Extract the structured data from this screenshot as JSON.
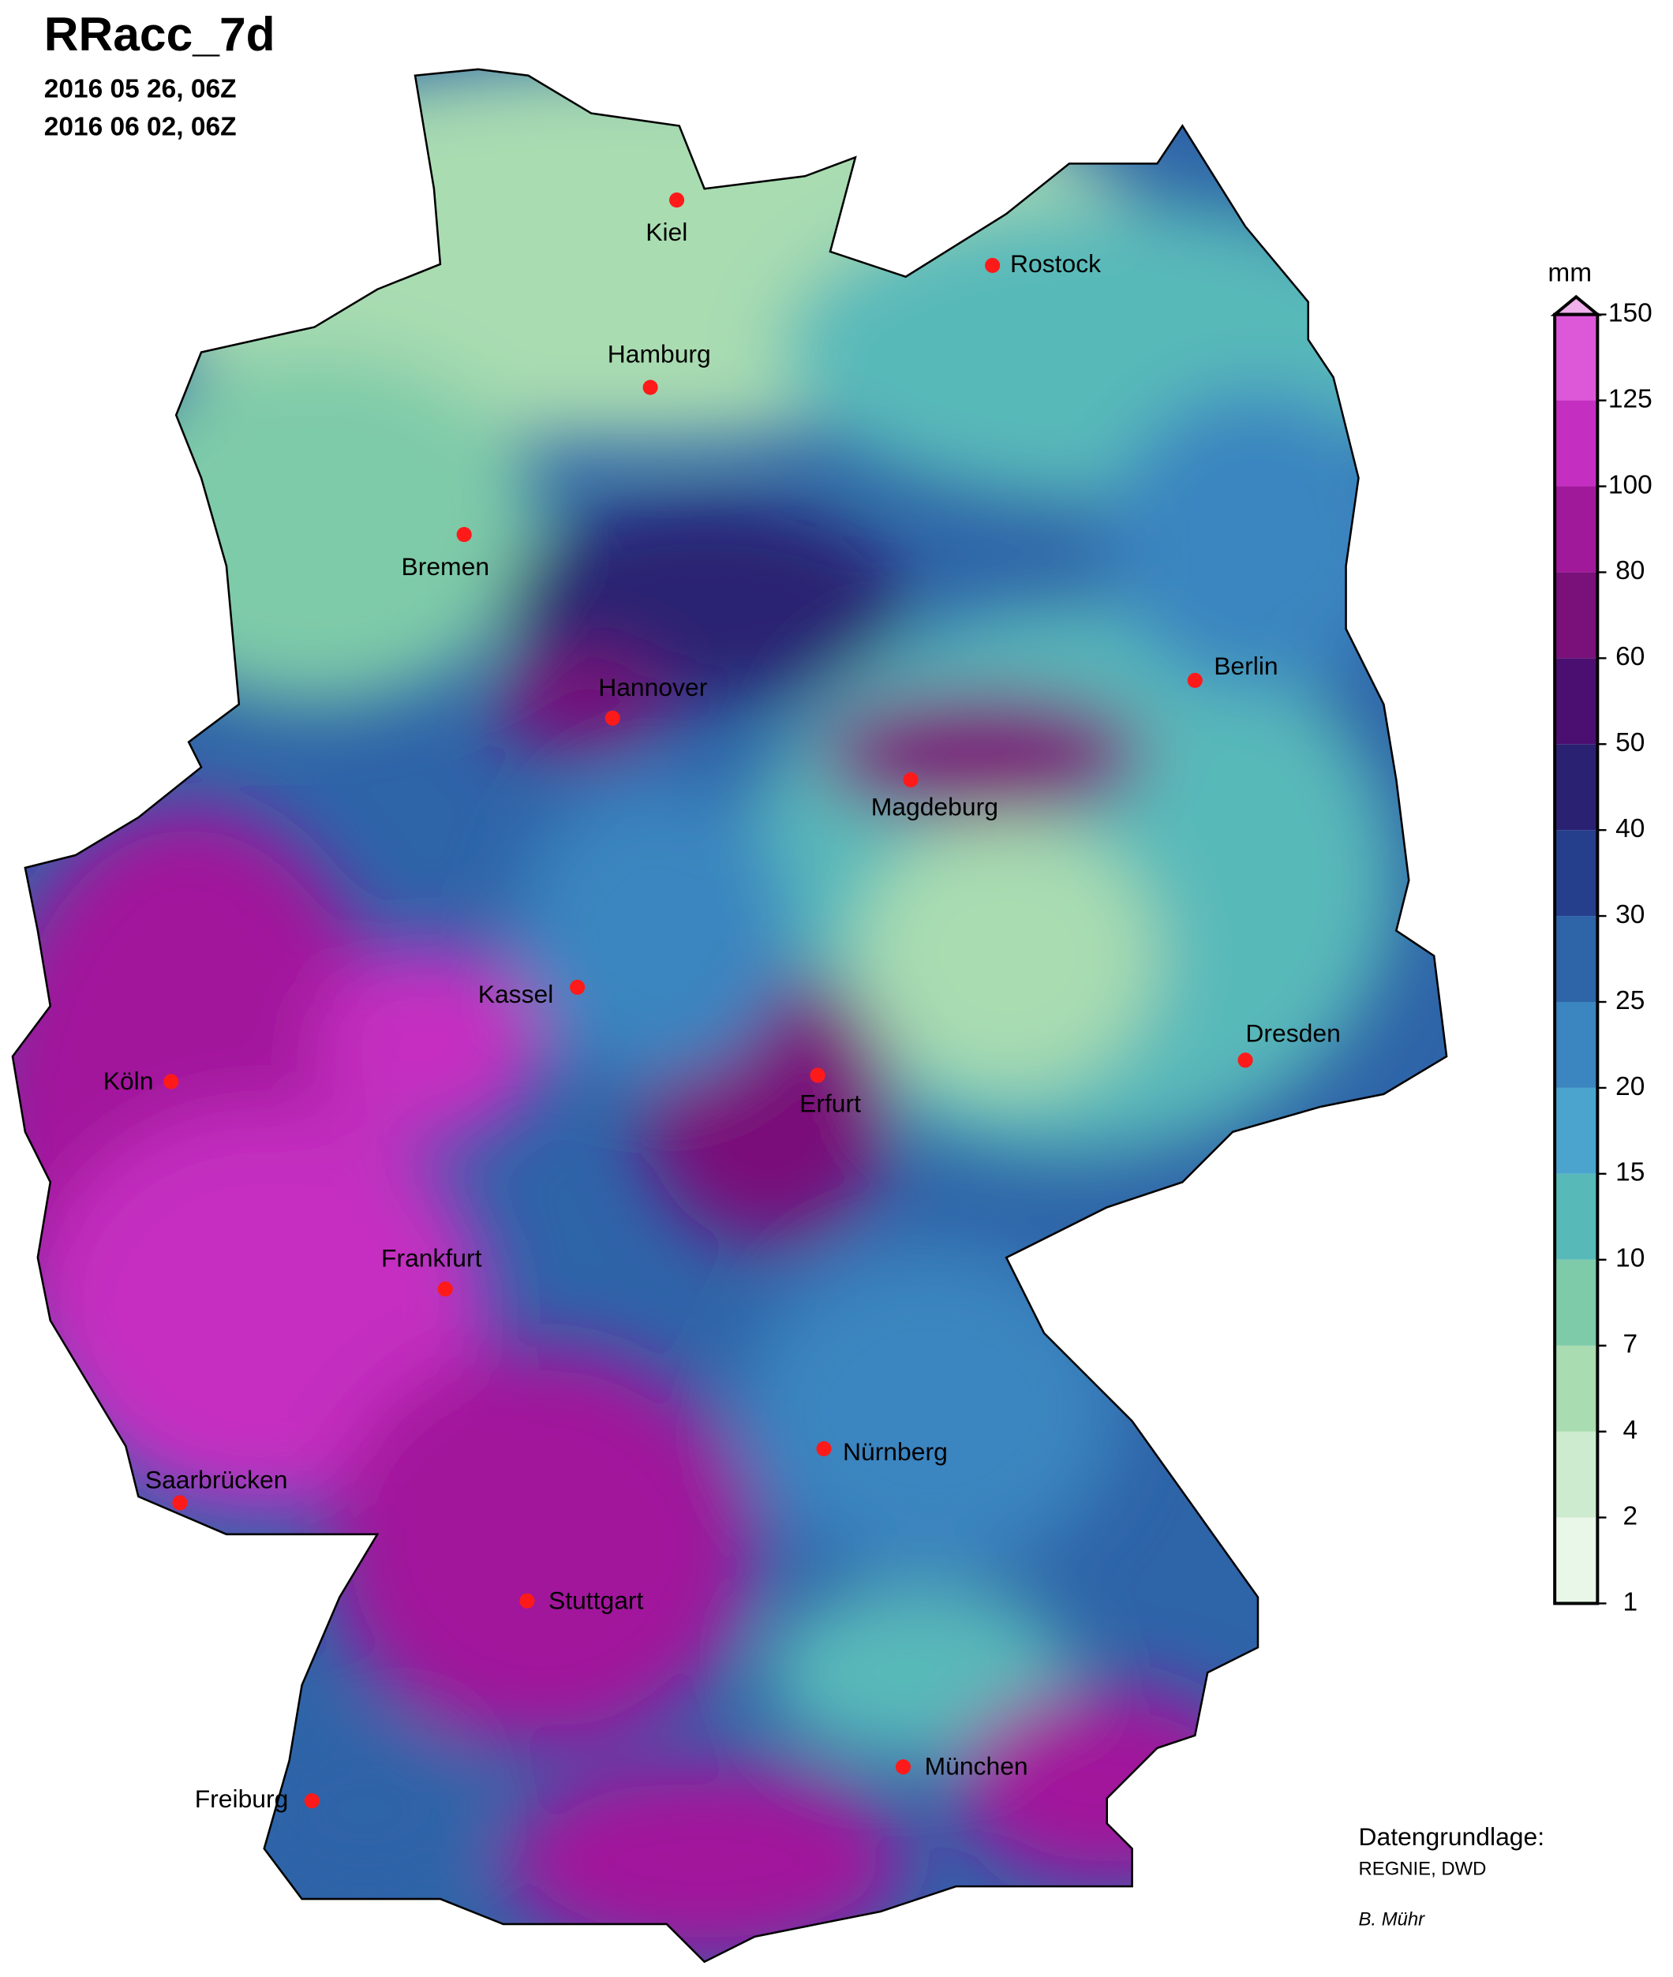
{
  "header": {
    "title": "RRacc_7d",
    "start": "2016 05 26, 06Z",
    "end": "2016 06 02, 06Z"
  },
  "cities": [
    "Kiel",
    "Rostock",
    "Hamburg",
    "Bremen",
    "Hannover",
    "Berlin",
    "Magdeburg",
    "Kassel",
    "Köln",
    "Erfurt",
    "Dresden",
    "Frankfurt",
    "Nürnberg",
    "Saarbrücken",
    "Stuttgart",
    "Freiburg",
    "München"
  ],
  "legend": {
    "unit": "mm",
    "ticks": [
      1,
      2,
      4,
      7,
      10,
      15,
      20,
      25,
      30,
      40,
      50,
      60,
      80,
      100,
      125,
      150
    ],
    "colors": [
      "#e8f7e8",
      "#cdeccf",
      "#a9dcb1",
      "#7ecba9",
      "#58b9b9",
      "#4aa4cd",
      "#3b85c0",
      "#2e64a8",
      "#263f8c",
      "#2b2172",
      "#4b0f71",
      "#7a1079",
      "#a1199b",
      "#c52fc1",
      "#dd57d9"
    ]
  },
  "credits": {
    "source_label": "Datengrundlage:",
    "source": "REGNIE, DWD",
    "author": "B. Mühr"
  }
}
